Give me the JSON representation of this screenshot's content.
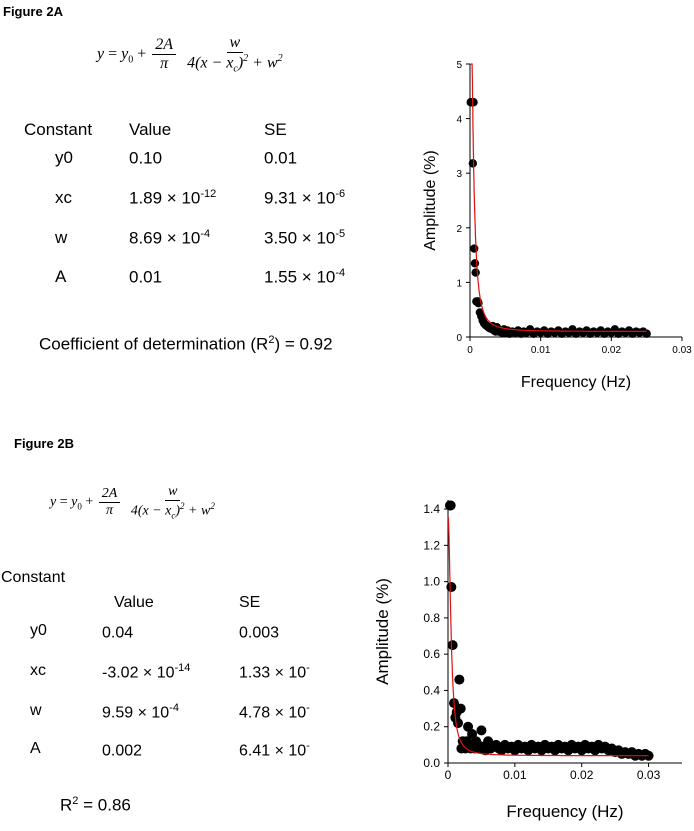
{
  "figure_a": {
    "title": "Figure 2A",
    "equation": {
      "lhs": "y",
      "y0": "y",
      "y0_sub": "0",
      "num": "2A",
      "pi": "π",
      "w": "w",
      "den_pre": "4(x − x",
      "den_sub": "c",
      "den_post": ")",
      "den_sq": "2",
      "den_plus": "+ w",
      "den_w_sq": "2"
    },
    "table": {
      "headers": [
        "Constant",
        "Value",
        "SE"
      ],
      "rows": [
        {
          "name": "y0",
          "value": "0.10",
          "value_exp": "",
          "se": "0.01",
          "se_exp": ""
        },
        {
          "name": "xc",
          "value": "1.89 ×  10",
          "value_exp": "-12",
          "se": "9.31 ×  10",
          "se_exp": "-6"
        },
        {
          "name": "w",
          "value": "8.69 ×  10",
          "value_exp": "-4",
          "se": "3.50 ×  10",
          "se_exp": "-5"
        },
        {
          "name": "A",
          "value": "0.01",
          "value_exp": "",
          "se": "1.55 ×  10",
          "se_exp": "-4"
        }
      ]
    },
    "r2_text": "Coefficient of determination (R",
    "r2_sup": "2",
    "r2_tail": ") = 0.92"
  },
  "figure_b": {
    "title": "Figure 2B",
    "table": {
      "headers": [
        "Constant",
        "Value",
        "SE"
      ],
      "rows": [
        {
          "name": "y0",
          "value": "0.04",
          "value_exp": "",
          "se": "0.003",
          "se_exp": ""
        },
        {
          "name": "xc",
          "value": "-3.02 ×  10",
          "value_exp": "-14",
          "se": "1.33 ×  10",
          "se_exp": "-"
        },
        {
          "name": "w",
          "value": "9.59 ×  10",
          "value_exp": "-4",
          "se": "4.78 ×  10",
          "se_exp": "-"
        },
        {
          "name": "A",
          "value": "0.002",
          "value_exp": "",
          "se": "6.41 ×  10",
          "se_exp": "-"
        }
      ]
    },
    "r2_text": "R",
    "r2_sup": "2",
    "r2_tail": " = 0.86"
  },
  "chart_data": [
    {
      "type": "scatter",
      "title": "",
      "xlabel": "Frequency (Hz)",
      "ylabel": "Amplitude (%)",
      "xlim": [
        0,
        0.03
      ],
      "ylim": [
        0,
        5
      ],
      "x_ticks": [
        "0",
        "0.01",
        "0.02",
        "0.03"
      ],
      "y_ticks": [
        "0",
        "1",
        "2",
        "3",
        "4",
        "5"
      ],
      "grid": false,
      "point_color": "#000000",
      "fit_color": "#e01010",
      "fit": {
        "y0": 0.1,
        "xc": 0,
        "w": 0.000869,
        "A": 0.01
      },
      "points": {
        "x": [
          0.0001,
          0.0002,
          0.0003,
          0.0004,
          0.0005,
          0.0004,
          0.0006,
          0.0007,
          0.0008,
          0.0009,
          0.001,
          0.0011,
          0.0012,
          0.0014,
          0.0016,
          0.0018,
          0.002,
          0.0022,
          0.0024,
          0.0026,
          0.0028,
          0.003,
          0.0032,
          0.0034,
          0.0036,
          0.0038,
          0.004,
          0.0042,
          0.0045,
          0.0048,
          0.005,
          0.0053,
          0.0056,
          0.006,
          0.0064,
          0.0068,
          0.0072,
          0.0076,
          0.008,
          0.0085,
          0.009,
          0.0095,
          0.01,
          0.0105,
          0.011,
          0.0115,
          0.012,
          0.0125,
          0.013,
          0.0135,
          0.014,
          0.0145,
          0.015,
          0.0155,
          0.016,
          0.0165,
          0.017,
          0.0175,
          0.018,
          0.0185,
          0.019,
          0.0195,
          0.02,
          0.0205,
          0.021,
          0.0215,
          0.022,
          0.0225,
          0.023,
          0.0235,
          0.024,
          0.0245,
          0.025
        ],
        "y": [
          4.3,
          4.3,
          4.3,
          4.3,
          4.3,
          3.18,
          1.62,
          1.35,
          1.18,
          0.65,
          0.65,
          0.65,
          0.62,
          0.45,
          0.38,
          0.3,
          0.25,
          0.22,
          0.2,
          0.18,
          0.16,
          0.15,
          0.2,
          0.12,
          0.1,
          0.18,
          0.1,
          0.12,
          0.08,
          0.14,
          0.08,
          0.12,
          0.06,
          0.1,
          0.08,
          0.12,
          0.06,
          0.1,
          0.08,
          0.14,
          0.06,
          0.1,
          0.08,
          0.12,
          0.06,
          0.1,
          0.08,
          0.12,
          0.06,
          0.1,
          0.08,
          0.14,
          0.06,
          0.1,
          0.08,
          0.12,
          0.06,
          0.1,
          0.08,
          0.12,
          0.06,
          0.1,
          0.08,
          0.14,
          0.06,
          0.1,
          0.08,
          0.12,
          0.06,
          0.1,
          0.08,
          0.1,
          0.06
        ]
      }
    },
    {
      "type": "scatter",
      "title": "",
      "xlabel": "Frequency (Hz)",
      "ylabel": "Amplitude (%)",
      "xlim": [
        0,
        0.035
      ],
      "ylim": [
        0,
        1.45
      ],
      "x_ticks": [
        "0",
        "0.01",
        "0.02",
        "0.03"
      ],
      "y_ticks": [
        "0.0",
        "0.2",
        "0.4",
        "0.6",
        "0.8",
        "1.0",
        "1.2",
        "1.4"
      ],
      "grid": false,
      "point_color": "#000000",
      "fit_color": "#e01010",
      "fit": {
        "y0": 0.04,
        "xc": 0,
        "w": 0.000959,
        "A": 0.002
      },
      "points": {
        "x": [
          0.0003,
          0.0004,
          0.0005,
          0.0007,
          0.0009,
          0.0011,
          0.0013,
          0.0015,
          0.0017,
          0.0019,
          0.002,
          0.0022,
          0.0024,
          0.0026,
          0.0028,
          0.003,
          0.0032,
          0.0034,
          0.0036,
          0.0038,
          0.004,
          0.0042,
          0.0045,
          0.0048,
          0.005,
          0.0053,
          0.0056,
          0.006,
          0.0064,
          0.0068,
          0.0072,
          0.0076,
          0.008,
          0.0085,
          0.009,
          0.0095,
          0.01,
          0.0105,
          0.011,
          0.0115,
          0.012,
          0.0125,
          0.013,
          0.0135,
          0.014,
          0.0145,
          0.015,
          0.0155,
          0.016,
          0.0165,
          0.017,
          0.0175,
          0.018,
          0.0185,
          0.019,
          0.0195,
          0.02,
          0.0205,
          0.021,
          0.0215,
          0.022,
          0.0225,
          0.023,
          0.0235,
          0.024,
          0.0245,
          0.025,
          0.0255,
          0.026,
          0.0265,
          0.027,
          0.0275,
          0.028,
          0.0285,
          0.029,
          0.0295,
          0.03
        ],
        "y": [
          1.42,
          1.42,
          0.97,
          0.65,
          0.33,
          0.25,
          0.28,
          0.22,
          0.46,
          0.3,
          0.08,
          0.12,
          0.1,
          0.08,
          0.12,
          0.2,
          0.1,
          0.08,
          0.16,
          0.09,
          0.08,
          0.12,
          0.1,
          0.08,
          0.18,
          0.09,
          0.07,
          0.12,
          0.08,
          0.09,
          0.1,
          0.08,
          0.07,
          0.1,
          0.08,
          0.09,
          0.07,
          0.1,
          0.08,
          0.09,
          0.07,
          0.1,
          0.08,
          0.09,
          0.07,
          0.1,
          0.08,
          0.09,
          0.07,
          0.1,
          0.08,
          0.09,
          0.07,
          0.1,
          0.08,
          0.09,
          0.07,
          0.1,
          0.08,
          0.09,
          0.07,
          0.1,
          0.08,
          0.09,
          0.07,
          0.08,
          0.06,
          0.07,
          0.05,
          0.06,
          0.05,
          0.06,
          0.04,
          0.05,
          0.04,
          0.05,
          0.04
        ]
      }
    }
  ]
}
